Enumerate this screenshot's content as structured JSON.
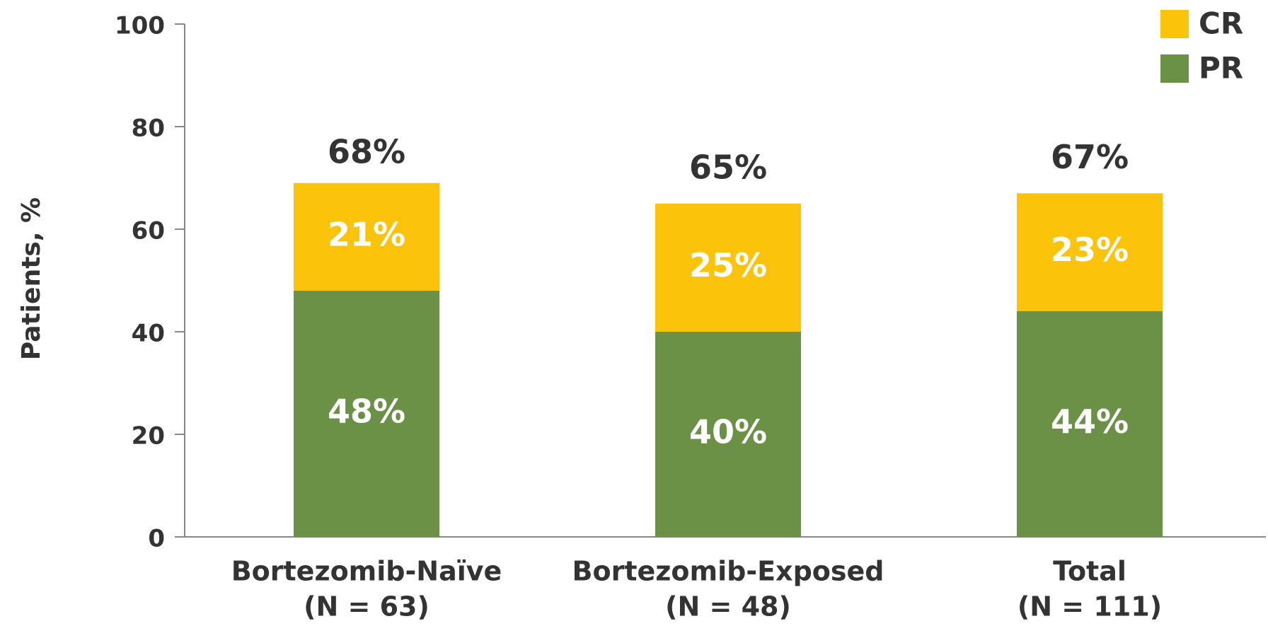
{
  "chart_data": {
    "type": "stacked-bar",
    "y_label": "Patients, %",
    "categories": [
      [
        "Bortezomib-Naïve",
        "(N = 63)"
      ],
      [
        "Bortezomib-Exposed",
        "(N = 48)"
      ],
      [
        "Total",
        "(N = 111)"
      ]
    ],
    "series": [
      {
        "name": "PR",
        "color": "#6a9146",
        "values": [
          48,
          40,
          44
        ],
        "value_labels": [
          "48%",
          "40%",
          "44%"
        ]
      },
      {
        "name": "CR",
        "color": "#fcc30b",
        "values": [
          21,
          25,
          23
        ],
        "value_labels": [
          "21%",
          "25%",
          "23%"
        ]
      }
    ],
    "totals": {
      "values": [
        68,
        65,
        67
      ],
      "value_labels": [
        "68%",
        "65%",
        "67%"
      ]
    },
    "ylim": [
      0,
      100
    ],
    "yticks": [
      0,
      20,
      40,
      60,
      80,
      100
    ],
    "grid": false,
    "legend": "top-right"
  }
}
